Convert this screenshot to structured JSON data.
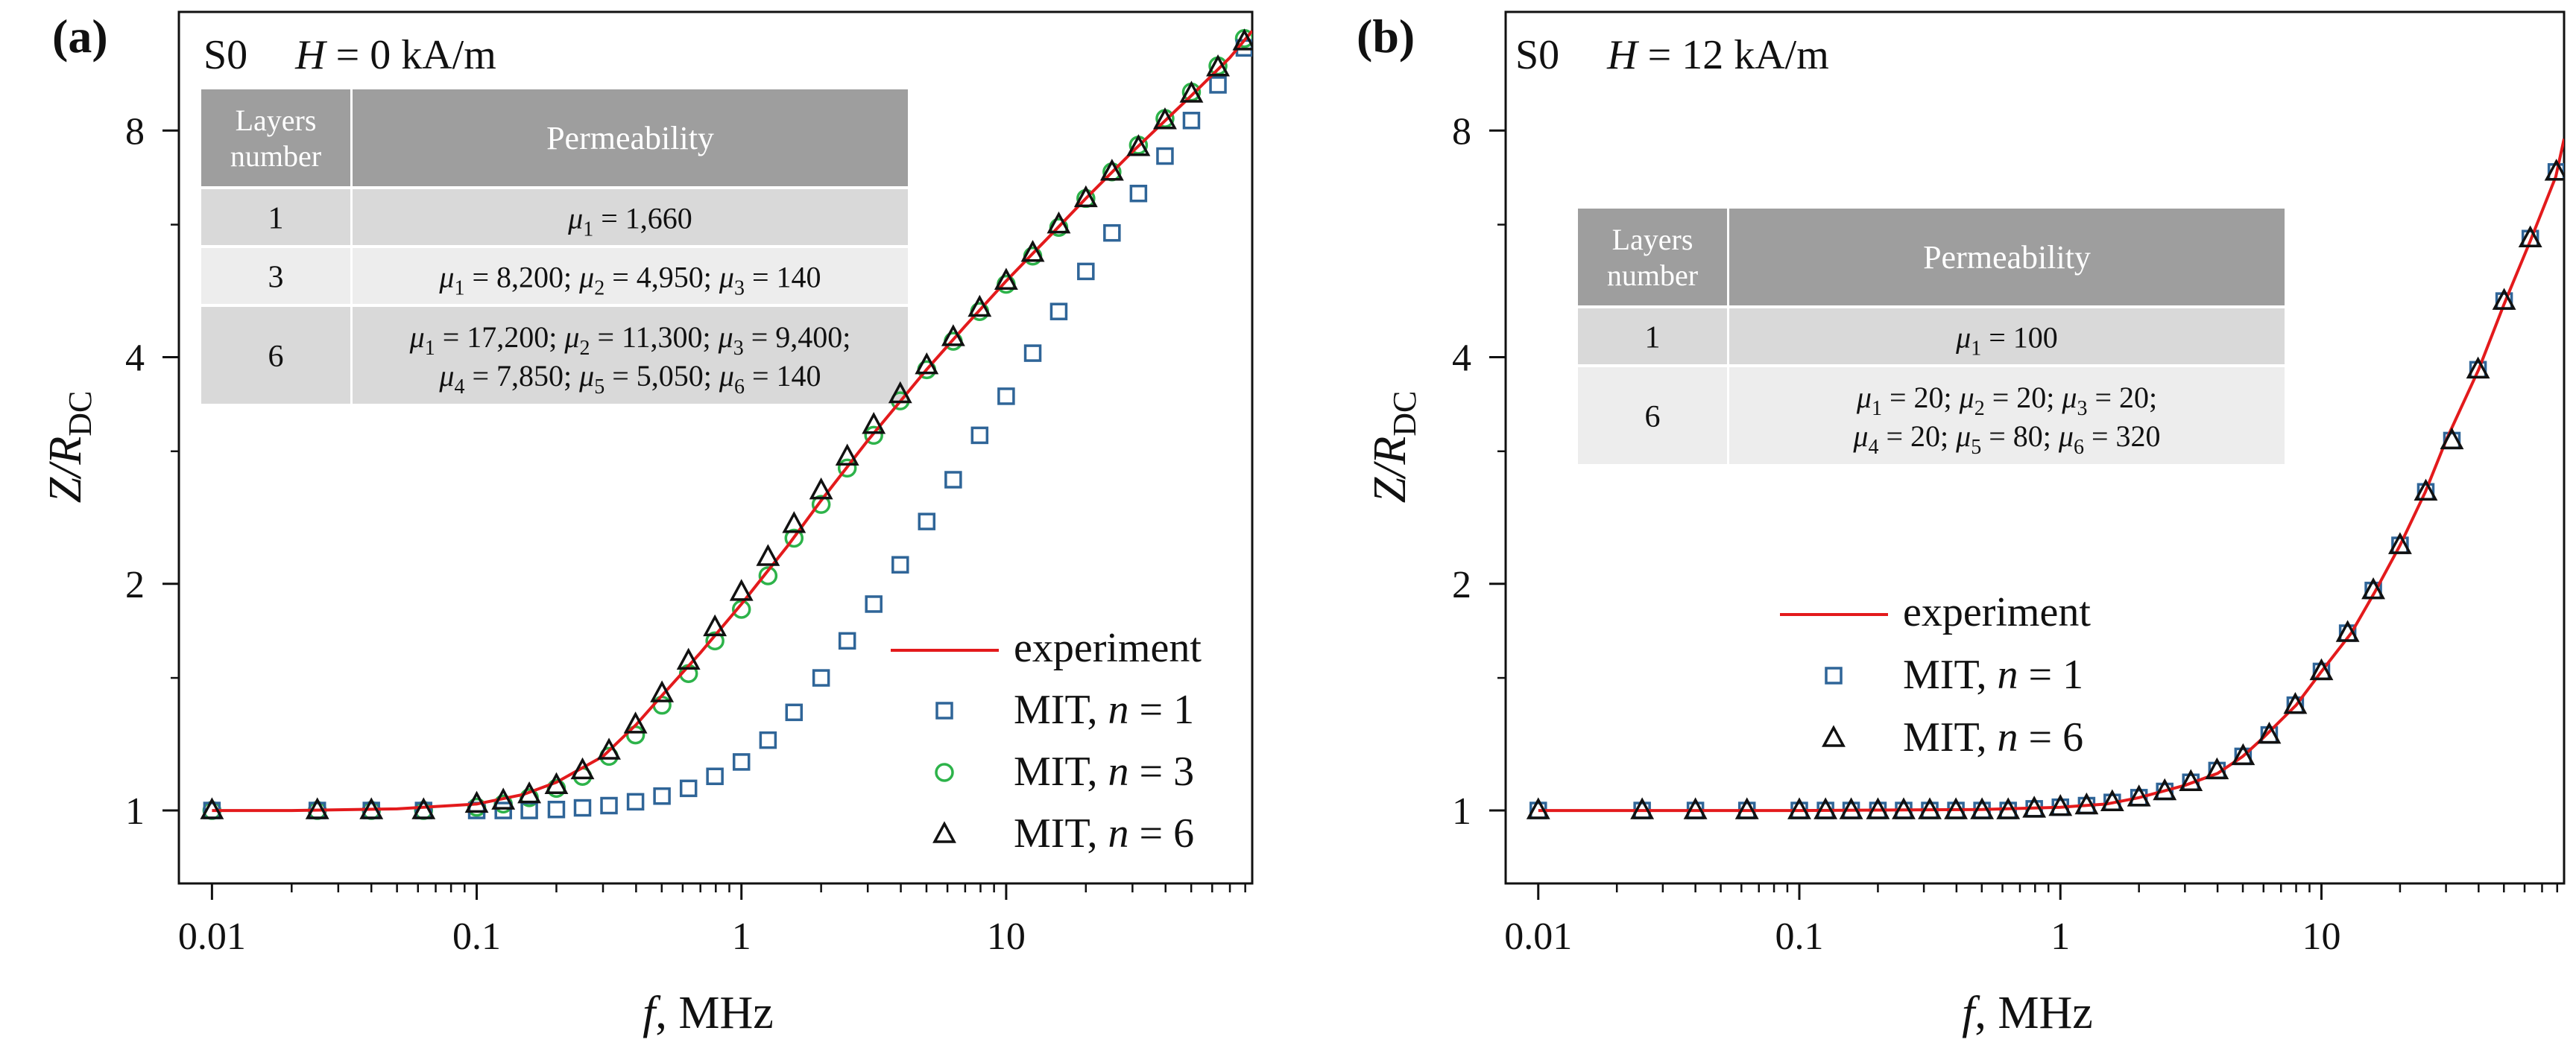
{
  "colors": {
    "experiment": "#e31a1c",
    "mit_n1": "#2f6598",
    "mit_n3": "#2db34a",
    "mit_n6": "#111111",
    "table_header": "#9e9e9e",
    "table_row_dark": "#d9d9d9",
    "table_row_light": "#ededed"
  },
  "chart_data": [
    {
      "type": "line",
      "panel_label": "(a)",
      "sample": "S0",
      "field_var": "H",
      "field_value": " = 0 kA/m",
      "xlabel_var": "f",
      "xlabel_rest": ", MHz",
      "ylabel_var": "Z/R",
      "ylabel_sub": "DC",
      "xscale": "log",
      "yscale": "log",
      "xlim": [
        0.0075,
        85
      ],
      "ylim": [
        0.8,
        11.5
      ],
      "xticks": [
        0.01,
        0.1,
        1,
        10
      ],
      "xtick_labels": [
        "0.01",
        "0.1",
        "1",
        "10"
      ],
      "yticks": [
        1,
        2,
        4,
        8
      ],
      "ytick_labels": [
        "1",
        "2",
        "4",
        "8"
      ],
      "legend": {
        "experiment": "experiment",
        "mit": "MIT, ",
        "n": "n",
        "items": [
          {
            "key": "mit_n1",
            "value": " = 1",
            "marker": "square"
          },
          {
            "key": "mit_n3",
            "value": " = 3",
            "marker": "circle"
          },
          {
            "key": "mit_n6",
            "value": " = 6",
            "marker": "triangle"
          }
        ]
      },
      "table": {
        "header_layers": [
          "Layers",
          "number"
        ],
        "header_perm": "Permeability",
        "rows": [
          {
            "layers": "1",
            "lines": [
              [
                "μ",
                "1",
                " = 1,660"
              ]
            ]
          },
          {
            "layers": "3",
            "lines": [
              [
                "μ",
                "1",
                " = 8,200; ",
                "μ",
                "2",
                " = 4,950; ",
                "μ",
                "3",
                " = 140"
              ]
            ]
          },
          {
            "layers": "6",
            "lines": [
              [
                "μ",
                "1",
                " = 17,200; ",
                "μ",
                "2",
                " = 11,300; ",
                "μ",
                "3",
                " = 9,400;"
              ],
              [
                "μ",
                "4",
                " = 7,850; ",
                "μ",
                "5",
                " = 5,050; ",
                "μ",
                "6",
                " = 140"
              ]
            ]
          }
        ]
      },
      "series": [
        {
          "name": "experiment",
          "style": "line",
          "x": [
            0.01,
            0.02,
            0.05,
            0.1,
            0.15,
            0.2,
            0.3,
            0.4,
            0.5,
            0.7,
            1,
            1.5,
            2,
            3,
            5,
            7,
            10,
            15,
            20,
            30,
            50,
            70,
            85
          ],
          "y": [
            1,
            1,
            1.005,
            1.02,
            1.05,
            1.09,
            1.18,
            1.3,
            1.42,
            1.62,
            1.88,
            2.25,
            2.58,
            3.1,
            3.85,
            4.4,
            5.05,
            5.85,
            6.5,
            7.5,
            8.9,
            10.0,
            10.85
          ]
        },
        {
          "name": "MIT, n = 1",
          "style": "square",
          "x": [
            0.01,
            0.025,
            0.04,
            0.063,
            0.1,
            0.126,
            0.158,
            0.2,
            0.251,
            0.316,
            0.398,
            0.501,
            0.631,
            0.794,
            1,
            1.26,
            1.58,
            2,
            2.51,
            3.16,
            3.98,
            5.01,
            6.31,
            7.94,
            10,
            12.6,
            15.8,
            20,
            25.1,
            31.6,
            39.8,
            50.1,
            63.1,
            79.4
          ],
          "y": [
            1,
            1,
            1,
            1,
            1,
            1,
            1,
            1.003,
            1.008,
            1.015,
            1.027,
            1.045,
            1.07,
            1.11,
            1.16,
            1.24,
            1.35,
            1.5,
            1.68,
            1.88,
            2.12,
            2.42,
            2.75,
            3.15,
            3.55,
            4.05,
            4.6,
            5.2,
            5.85,
            6.6,
            7.4,
            8.25,
            9.2,
            10.3
          ]
        },
        {
          "name": "MIT, n = 3",
          "style": "circle",
          "x": [
            0.01,
            0.025,
            0.04,
            0.063,
            0.1,
            0.126,
            0.158,
            0.2,
            0.251,
            0.316,
            0.398,
            0.501,
            0.631,
            0.794,
            1,
            1.26,
            1.58,
            2,
            2.51,
            3.16,
            3.98,
            5.01,
            6.31,
            7.94,
            10,
            12.6,
            15.8,
            20,
            25.1,
            31.6,
            39.8,
            50.1,
            63.1,
            79.4
          ],
          "y": [
            1,
            1,
            1,
            1,
            1.01,
            1.02,
            1.04,
            1.07,
            1.11,
            1.18,
            1.26,
            1.38,
            1.52,
            1.68,
            1.85,
            2.05,
            2.3,
            2.55,
            2.85,
            3.15,
            3.5,
            3.85,
            4.2,
            4.6,
            5.0,
            5.45,
            5.95,
            6.5,
            7.05,
            7.65,
            8.3,
            9.0,
            9.75,
            10.6
          ]
        },
        {
          "name": "MIT, n = 6",
          "style": "triangle",
          "x": [
            0.01,
            0.025,
            0.04,
            0.063,
            0.1,
            0.126,
            0.158,
            0.2,
            0.251,
            0.316,
            0.398,
            0.501,
            0.631,
            0.794,
            1,
            1.26,
            1.58,
            2,
            2.51,
            3.16,
            3.98,
            5.01,
            6.31,
            7.94,
            10,
            12.6,
            15.8,
            20,
            25.1,
            31.6,
            39.8,
            50.1,
            63.1,
            79.4
          ],
          "y": [
            1,
            1,
            1,
            1,
            1.02,
            1.03,
            1.05,
            1.08,
            1.13,
            1.2,
            1.3,
            1.43,
            1.58,
            1.75,
            1.95,
            2.17,
            2.4,
            2.66,
            2.95,
            3.25,
            3.57,
            3.9,
            4.25,
            4.65,
            5.05,
            5.5,
            6.0,
            6.5,
            7.05,
            7.6,
            8.25,
            8.95,
            9.7,
            10.5
          ]
        }
      ]
    },
    {
      "type": "line",
      "panel_label": "(b)",
      "sample": "S0",
      "field_var": "H",
      "field_value": " = 12 kA/m",
      "xlabel_var": "f",
      "xlabel_rest": ", MHz",
      "ylabel_var": "Z/R",
      "ylabel_sub": "DC",
      "xscale": "log",
      "yscale": "log",
      "xlim": [
        0.0075,
        85
      ],
      "ylim": [
        0.8,
        11.5
      ],
      "xticks": [
        0.01,
        0.1,
        1,
        10
      ],
      "xtick_labels": [
        "0.01",
        "0.1",
        "1",
        "10"
      ],
      "yticks": [
        1,
        2,
        4,
        8
      ],
      "ytick_labels": [
        "1",
        "2",
        "4",
        "8"
      ],
      "legend": {
        "experiment": "experiment",
        "mit": "MIT, ",
        "n": "n",
        "items": [
          {
            "key": "mit_n1",
            "value": " = 1",
            "marker": "square"
          },
          {
            "key": "mit_n6",
            "value": " = 6",
            "marker": "triangle"
          }
        ]
      },
      "table": {
        "header_layers": [
          "Layers",
          "number"
        ],
        "header_perm": "Permeability",
        "rows": [
          {
            "layers": "1",
            "lines": [
              [
                "μ",
                "1",
                " = 100"
              ]
            ]
          },
          {
            "layers": "6",
            "lines": [
              [
                "μ",
                "1",
                " = 20; ",
                "μ",
                "2",
                " = 20; ",
                "μ",
                "3",
                " = 20;"
              ],
              [
                "μ",
                "4",
                " = 20; ",
                "μ",
                "5",
                " = 80; ",
                "μ",
                "6",
                " = 320"
              ]
            ]
          }
        ]
      },
      "series": [
        {
          "name": "experiment",
          "style": "line",
          "x": [
            0.01,
            0.1,
            0.5,
            1,
            1.5,
            2,
            3,
            4,
            5,
            6,
            8,
            10,
            13,
            16,
            20,
            25,
            30,
            40,
            50,
            63,
            79,
            85
          ],
          "y": [
            1,
            1,
            1.003,
            1.01,
            1.02,
            1.04,
            1.08,
            1.12,
            1.18,
            1.25,
            1.38,
            1.53,
            1.72,
            1.95,
            2.25,
            2.65,
            3.1,
            3.85,
            4.7,
            5.7,
            6.95,
            7.8
          ]
        },
        {
          "name": "MIT, n = 1",
          "style": "square",
          "x": [
            0.01,
            0.025,
            0.04,
            0.063,
            0.1,
            0.126,
            0.158,
            0.2,
            0.251,
            0.316,
            0.398,
            0.501,
            0.631,
            0.794,
            1,
            1.26,
            1.58,
            2,
            2.51,
            3.16,
            3.98,
            5.01,
            6.31,
            7.94,
            10,
            12.6,
            15.8,
            20,
            25.1,
            31.6,
            39.8,
            50.1,
            63.1,
            79.4
          ],
          "y": [
            1,
            1,
            1,
            1,
            1,
            1,
            1,
            1,
            1,
            1,
            1,
            1,
            1,
            1.005,
            1.01,
            1.015,
            1.025,
            1.04,
            1.06,
            1.09,
            1.13,
            1.18,
            1.26,
            1.38,
            1.53,
            1.72,
            1.96,
            2.25,
            2.65,
            3.1,
            3.85,
            4.75,
            5.75,
            7.05
          ]
        },
        {
          "name": "MIT, n = 6",
          "style": "triangle",
          "x": [
            0.01,
            0.025,
            0.04,
            0.063,
            0.1,
            0.126,
            0.158,
            0.2,
            0.251,
            0.316,
            0.398,
            0.501,
            0.631,
            0.794,
            1,
            1.26,
            1.58,
            2,
            2.51,
            3.16,
            3.98,
            5.01,
            6.31,
            7.94,
            10,
            12.6,
            15.8,
            20,
            25.1,
            31.6,
            39.8,
            50.1,
            63.1,
            79.4
          ],
          "y": [
            1,
            1,
            1,
            1,
            1,
            1,
            1,
            1,
            1,
            1,
            1,
            1,
            1,
            1.005,
            1.01,
            1.015,
            1.025,
            1.04,
            1.06,
            1.09,
            1.13,
            1.18,
            1.26,
            1.38,
            1.53,
            1.72,
            1.96,
            2.25,
            2.65,
            3.1,
            3.85,
            4.75,
            5.75,
            7.05
          ]
        }
      ]
    }
  ]
}
